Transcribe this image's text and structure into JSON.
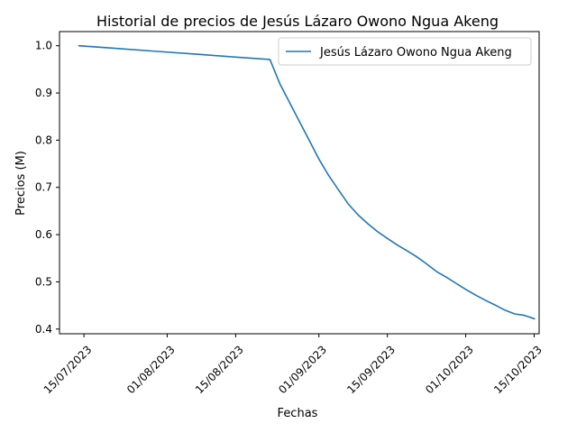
{
  "chart_data": {
    "type": "line",
    "title": "Historial de precios de Jesús Lázaro Owono Ngua Akeng",
    "xlabel": "Fechas",
    "ylabel": "Precios (M)",
    "xlim": [
      "2023-07-10",
      "2023-10-16"
    ],
    "ylim": [
      0.39,
      1.03
    ],
    "x_ticks": [
      {
        "date": "2023-07-15",
        "label": "15/07/2023"
      },
      {
        "date": "2023-08-01",
        "label": "01/08/2023"
      },
      {
        "date": "2023-08-15",
        "label": "15/08/2023"
      },
      {
        "date": "2023-09-01",
        "label": "01/09/2023"
      },
      {
        "date": "2023-09-15",
        "label": "15/09/2023"
      },
      {
        "date": "2023-10-01",
        "label": "01/10/2023"
      },
      {
        "date": "2023-10-15",
        "label": "15/10/2023"
      }
    ],
    "y_ticks": [
      {
        "value": 0.4,
        "label": "0.4"
      },
      {
        "value": 0.5,
        "label": "0.5"
      },
      {
        "value": 0.6,
        "label": "0.6"
      },
      {
        "value": 0.7,
        "label": "0.7"
      },
      {
        "value": 0.8,
        "label": "0.8"
      },
      {
        "value": 0.9,
        "label": "0.9"
      },
      {
        "value": 1.0,
        "label": "1.0"
      }
    ],
    "grid": false,
    "legend_position": "top-right",
    "series": [
      {
        "name": "Jesús Lázaro Owono Ngua Akeng",
        "color": "#1f77b4",
        "points": [
          {
            "x": "2023-07-14",
            "y": 1.0
          },
          {
            "x": "2023-07-22",
            "y": 0.994
          },
          {
            "x": "2023-07-30",
            "y": 0.988
          },
          {
            "x": "2023-08-07",
            "y": 0.982
          },
          {
            "x": "2023-08-15",
            "y": 0.976
          },
          {
            "x": "2023-08-22",
            "y": 0.971
          },
          {
            "x": "2023-08-24",
            "y": 0.92
          },
          {
            "x": "2023-08-26",
            "y": 0.88
          },
          {
            "x": "2023-08-28",
            "y": 0.84
          },
          {
            "x": "2023-08-30",
            "y": 0.8
          },
          {
            "x": "2023-09-01",
            "y": 0.76
          },
          {
            "x": "2023-09-03",
            "y": 0.725
          },
          {
            "x": "2023-09-05",
            "y": 0.695
          },
          {
            "x": "2023-09-07",
            "y": 0.665
          },
          {
            "x": "2023-09-09",
            "y": 0.642
          },
          {
            "x": "2023-09-11",
            "y": 0.623
          },
          {
            "x": "2023-09-13",
            "y": 0.606
          },
          {
            "x": "2023-09-15",
            "y": 0.592
          },
          {
            "x": "2023-09-17",
            "y": 0.578
          },
          {
            "x": "2023-09-19",
            "y": 0.566
          },
          {
            "x": "2023-09-21",
            "y": 0.553
          },
          {
            "x": "2023-09-23",
            "y": 0.538
          },
          {
            "x": "2023-09-25",
            "y": 0.522
          },
          {
            "x": "2023-09-27",
            "y": 0.51
          },
          {
            "x": "2023-09-29",
            "y": 0.497
          },
          {
            "x": "2023-10-01",
            "y": 0.484
          },
          {
            "x": "2023-10-03",
            "y": 0.472
          },
          {
            "x": "2023-10-05",
            "y": 0.461
          },
          {
            "x": "2023-10-07",
            "y": 0.451
          },
          {
            "x": "2023-10-09",
            "y": 0.44
          },
          {
            "x": "2023-10-11",
            "y": 0.432
          },
          {
            "x": "2023-10-13",
            "y": 0.429
          },
          {
            "x": "2023-10-15",
            "y": 0.422
          }
        ]
      }
    ]
  }
}
